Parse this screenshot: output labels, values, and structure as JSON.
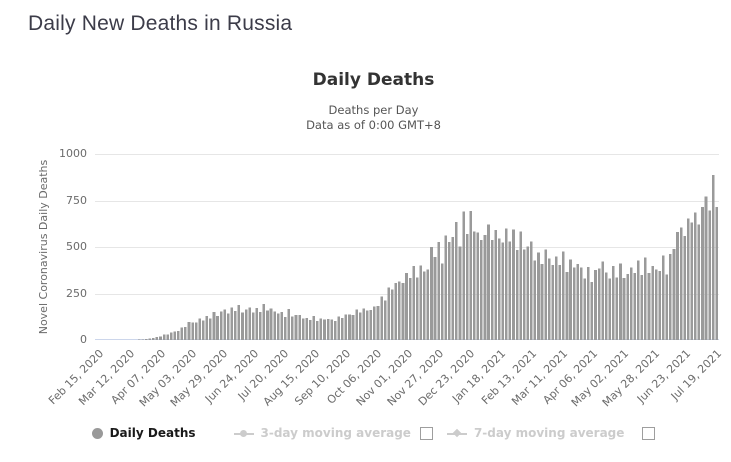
{
  "page": {
    "title": "Daily New Deaths in Russia"
  },
  "legend": {
    "items": [
      {
        "label": "Daily Deaths",
        "marker": "circle",
        "active": true,
        "has_checkbox": false
      },
      {
        "label": "3-day moving average",
        "marker": "line-circle",
        "active": false,
        "has_checkbox": true,
        "checkbox_checked": false
      },
      {
        "label": "7-day moving average",
        "marker": "line-diamond",
        "active": false,
        "has_checkbox": true,
        "checkbox_checked": false
      }
    ]
  },
  "colors": {
    "page_title": "#3c3c49",
    "chart_title": "#333333",
    "subtitle": "#555555",
    "axis_label": "#6b6b6b",
    "bar": "#9a9a9a",
    "gridline": "#e6e6e6",
    "axis_line": "#ccd6eb",
    "legend_active": "#1a1a1a",
    "legend_muted": "#cccccc"
  },
  "chart_data": {
    "type": "bar",
    "title": "Daily Deaths",
    "subtitle": [
      "Deaths per Day",
      "Data as of 0:00 GMT+8"
    ],
    "series_name": "Daily Deaths",
    "hidden_series": [
      "3-day moving average",
      "7-day moving average"
    ],
    "xlabel": "",
    "ylabel": "Novel Coronavirus Daily Deaths",
    "ylim": [
      0,
      1000
    ],
    "yticks": [
      0,
      250,
      500,
      750,
      1000
    ],
    "grid": true,
    "legend_position": "bottom",
    "x_start_date": "2020-02-15",
    "x_end_date": "2021-07-25",
    "total_days": 525,
    "xtick_interval_days": 26,
    "xtick_labels": [
      "Feb 15, 2020",
      "Mar 12, 2020",
      "Apr 07, 2020",
      "May 03, 2020",
      "May 29, 2020",
      "Jun 24, 2020",
      "Jul 20, 2020",
      "Aug 15, 2020",
      "Sep 10, 2020",
      "Oct 06, 2020",
      "Nov 01, 2020",
      "Nov 27, 2020",
      "Dec 23, 2020",
      "Jan 18, 2021",
      "Feb 13, 2021",
      "Mar 11, 2021",
      "Apr 06, 2021",
      "May 02, 2021",
      "May 28, 2021",
      "Jun 23, 2021",
      "Jul 19, 2021"
    ],
    "bar_color": "#9a9a9a",
    "point_interval_days": 3,
    "anchors_format": "[day_offset_from_2020-02-15, daily_deaths] weekly estimates read from plot",
    "anchors": [
      [
        0,
        0
      ],
      [
        28,
        0
      ],
      [
        35,
        1
      ],
      [
        42,
        5
      ],
      [
        49,
        12
      ],
      [
        56,
        24
      ],
      [
        63,
        38
      ],
      [
        70,
        58
      ],
      [
        77,
        88
      ],
      [
        84,
        100
      ],
      [
        91,
        112
      ],
      [
        98,
        128
      ],
      [
        105,
        140
      ],
      [
        112,
        168
      ],
      [
        119,
        178
      ],
      [
        126,
        172
      ],
      [
        133,
        158
      ],
      [
        140,
        168
      ],
      [
        147,
        158
      ],
      [
        154,
        152
      ],
      [
        161,
        146
      ],
      [
        168,
        136
      ],
      [
        175,
        122
      ],
      [
        182,
        112
      ],
      [
        189,
        106
      ],
      [
        196,
        110
      ],
      [
        203,
        113
      ],
      [
        210,
        122
      ],
      [
        217,
        138
      ],
      [
        224,
        152
      ],
      [
        231,
        168
      ],
      [
        238,
        200
      ],
      [
        245,
        242
      ],
      [
        252,
        288
      ],
      [
        259,
        322
      ],
      [
        266,
        356
      ],
      [
        273,
        398
      ],
      [
        280,
        430
      ],
      [
        287,
        465
      ],
      [
        294,
        520
      ],
      [
        301,
        545
      ],
      [
        308,
        580
      ],
      [
        315,
        620
      ],
      [
        322,
        540
      ],
      [
        329,
        565
      ],
      [
        336,
        590
      ],
      [
        343,
        552
      ],
      [
        350,
        528
      ],
      [
        357,
        505
      ],
      [
        364,
        480
      ],
      [
        371,
        455
      ],
      [
        378,
        432
      ],
      [
        385,
        425
      ],
      [
        392,
        440
      ],
      [
        399,
        420
      ],
      [
        406,
        405
      ],
      [
        413,
        385
      ],
      [
        420,
        373
      ],
      [
        427,
        385
      ],
      [
        434,
        374
      ],
      [
        441,
        366
      ],
      [
        448,
        356
      ],
      [
        455,
        374
      ],
      [
        462,
        390
      ],
      [
        469,
        384
      ],
      [
        476,
        395
      ],
      [
        483,
        445
      ],
      [
        490,
        550
      ],
      [
        497,
        615
      ],
      [
        504,
        660
      ],
      [
        511,
        705
      ],
      [
        518,
        760
      ],
      [
        525,
        790
      ]
    ]
  }
}
